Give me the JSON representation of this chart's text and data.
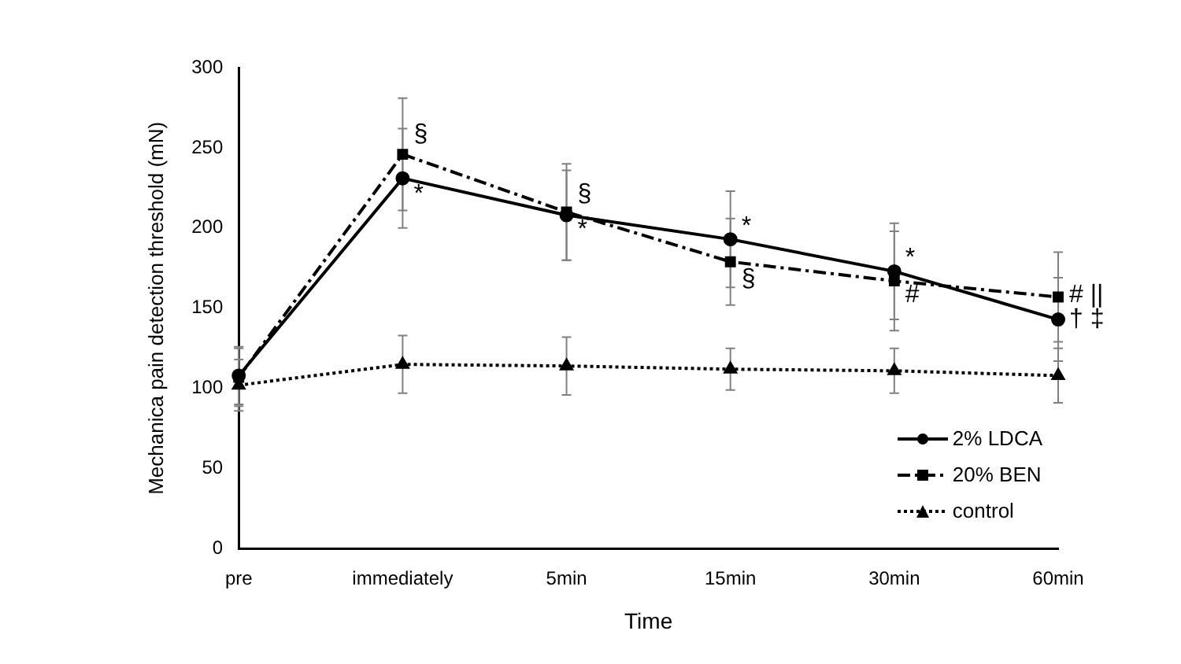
{
  "chart_data": {
    "type": "line",
    "xlabel": "Time",
    "ylabel": "Mechanica pain detection threshold (mN)",
    "categories": [
      "pre",
      "immediately",
      "5min",
      "15min",
      "30min",
      "60min"
    ],
    "series": [
      {
        "name": "2% LDCA",
        "color": "#000000",
        "marker": "circle",
        "line_style": "solid",
        "values": [
          108,
          231,
          208,
          193,
          173,
          143
        ],
        "errors": [
          18,
          31,
          28,
          30,
          30,
          26
        ]
      },
      {
        "name": "20% BEN",
        "color": "#000000",
        "marker": "square",
        "line_style": "dashdot",
        "values": [
          107,
          246,
          210,
          179,
          167,
          157
        ],
        "errors": [
          18,
          35,
          30,
          27,
          31,
          28
        ]
      },
      {
        "name": "control",
        "color": "#000000",
        "marker": "triangle",
        "line_style": "dotted",
        "values": [
          102,
          115,
          114,
          112,
          111,
          108
        ],
        "errors": [
          16,
          18,
          18,
          13,
          14,
          17
        ]
      }
    ],
    "ylim": [
      0,
      300
    ],
    "yticks": [
      0,
      50,
      100,
      150,
      200,
      250,
      300
    ],
    "grid": false,
    "legend": "bottom right",
    "annotations": [
      {
        "text": "§",
        "x": "immediately",
        "y": 258
      },
      {
        "text": "*",
        "x": "immediately",
        "y": 221
      },
      {
        "text": "§",
        "x": "5min",
        "y": 221
      },
      {
        "text": "*",
        "x": "5min",
        "y": 199
      },
      {
        "text": "*",
        "x": "15min",
        "y": 201
      },
      {
        "text": "§",
        "x": "15min",
        "y": 168
      },
      {
        "text": "*",
        "x": "30min",
        "y": 181
      },
      {
        "text": "#",
        "x": "30min",
        "y": 158
      },
      {
        "text": "# ||",
        "x": "60min",
        "y": 158
      },
      {
        "text": "† ‡",
        "x": "60min",
        "y": 143
      }
    ]
  }
}
